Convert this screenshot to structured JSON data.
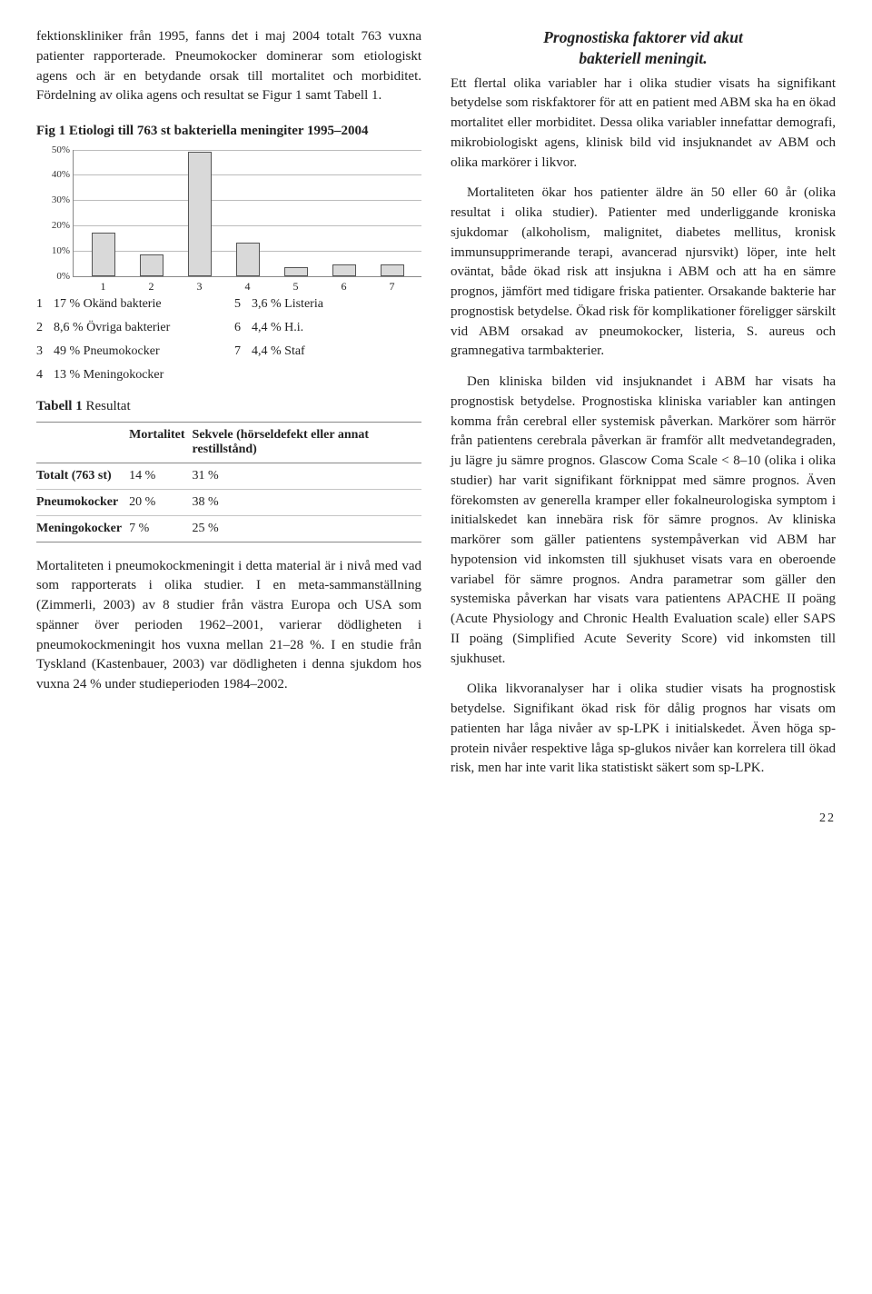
{
  "left": {
    "para1": "fektionskliniker från 1995, fanns det i maj 2004 totalt 763 vuxna patienter rapporterade. Pneumokocker dominerar som etiologiskt agens och är en betydande orsak till mortalitet och morbiditet. Fördelning av olika agens och resultat se Figur 1 samt Tabell 1.",
    "fig_title_prefix": "Fig 1",
    "fig_title_rest": " Etiologi till 763 st bakteriella meningiter 1995–2004",
    "chart": {
      "type": "bar",
      "ylim": [
        0,
        50
      ],
      "ytick_step": 10,
      "y_labels": [
        "0%",
        "10%",
        "20%",
        "30%",
        "40%",
        "50%"
      ],
      "x_labels": [
        "1",
        "2",
        "3",
        "4",
        "5",
        "6",
        "7"
      ],
      "values": [
        17,
        8.6,
        49,
        13,
        3.6,
        4.4,
        4.4
      ],
      "bar_color": "#d9d9d9",
      "bar_border": "#555555",
      "grid_color": "#bcbcbc",
      "axis_color": "#888888",
      "background": "#ffffff"
    },
    "legend": [
      {
        "n": "1",
        "t": "17 % Okänd bakterie"
      },
      {
        "n": "2",
        "t": "8,6 % Övriga bakterier"
      },
      {
        "n": "3",
        "t": "49 % Pneumokocker"
      },
      {
        "n": "4",
        "t": "13 % Meningokocker"
      },
      {
        "n": "5",
        "t": "3,6 % Listeria"
      },
      {
        "n": "6",
        "t": "4,4 % H.i."
      },
      {
        "n": "7",
        "t": "4,4 % Staf"
      }
    ],
    "table_title_prefix": "Tabell 1",
    "table_title_rest": " Resultat",
    "table": {
      "columns": [
        "",
        "Mortalitet",
        "Sekvele (hörseldefekt eller annat restillstånd)"
      ],
      "rows": [
        [
          "Totalt (763 st)",
          "14 %",
          "31 %"
        ],
        [
          "Pneumokocker",
          "20 %",
          "38 %"
        ],
        [
          "Meningokocker",
          "7 %",
          "25 %"
        ]
      ],
      "col0_bold": true
    },
    "para2": "Mortaliteten i pneumokockmeningit i detta material är i nivå med vad som rapporterats i olika studier. I en meta-sammanställning (Zimmerli, 2003) av 8 studier från västra Europa och USA som spänner över perioden 1962–2001, varierar dödligheten i pneumokockmeningit hos vuxna mellan 21–28 %. I en studie från Tyskland (Kastenbauer, 2003) var dödligheten i denna sjukdom hos vuxna 24 % under studieperioden 1984–2002."
  },
  "right": {
    "heading_line1": "Prognostiska faktorer vid akut",
    "heading_line2": "bakteriell meningit.",
    "p1": "Ett flertal olika variabler har i olika studier visats ha signifikant betydelse som riskfaktorer för att en patient med ABM ska ha en ökad mortalitet eller morbiditet. Dessa olika variabler innefattar demografi, mikrobiologiskt agens, klinisk bild vid insjuknandet av ABM och olika markörer i likvor.",
    "p2": "Mortaliteten ökar hos patienter äldre än 50 eller 60 år (olika resultat i olika studier). Patienter med underliggande kroniska sjukdomar (alkoholism, malignitet, diabetes mellitus, kronisk immunsupprimerande terapi, avancerad njursvikt) löper, inte helt oväntat, både ökad risk att insjukna i ABM och att ha en sämre prognos, jämfört med tidigare friska patienter. Orsakande bakterie har prognostisk betydelse. Ökad risk för komplikationer föreligger särskilt vid ABM orsakad av pneumokocker, listeria, S. aureus och gramnegativa tarmbakterier.",
    "p3": "Den kliniska bilden vid insjuknandet i ABM har visats ha prognostisk betydelse. Prognostiska kliniska variabler kan antingen komma från cerebral eller systemisk påverkan. Markörer som härrör från patientens cerebrala påverkan är framför allt medvetandegraden, ju lägre ju sämre prognos. Glascow Coma Scale < 8–10 (olika i olika studier) har varit signifikant förknippat med sämre prognos. Även förekomsten av generella kramper eller fokalneurologiska symptom i initialskedet kan innebära risk för sämre prognos. Av kliniska markörer som gäller patientens systempåverkan vid ABM har hypotension vid inkomsten till sjukhuset visats vara en oberoende variabel för sämre prognos. Andra parametrar som gäller den systemiska påverkan har visats vara patientens APACHE II poäng (Acute Physiology and Chronic Health Evaluation scale) eller SAPS II poäng (Simplified Acute Severity Score) vid inkomsten till sjukhuset.",
    "p4": "Olika likvoranalyser har i olika studier visats ha prognostisk betydelse. Signifikant ökad risk för dålig prognos har visats om patienten har låga nivåer av sp-LPK i initialskedet. Även höga sp-protein nivåer respektive låga sp-glukos nivåer kan korrelera till ökad risk, men har inte varit lika statistiskt säkert som sp-LPK."
  },
  "page": "22"
}
